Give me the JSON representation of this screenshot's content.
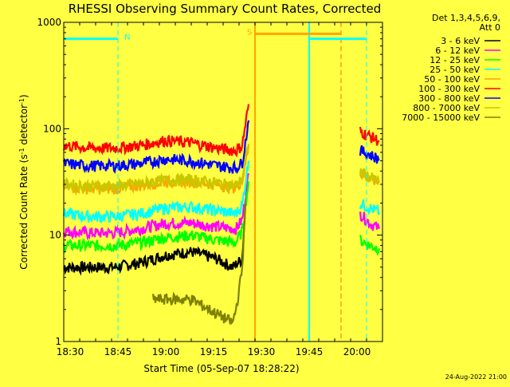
{
  "chart_data": {
    "type": "line",
    "title": "RHESSI Observing Summary Count Rates, Corrected",
    "xlabel": "Start Time (05-Sep-07 18:28:22)",
    "ylabel_parts": [
      "Corrected Count Rate (s",
      "-1",
      " detector",
      "-1",
      ")"
    ],
    "yscale": "log",
    "ylim": [
      1,
      1000
    ],
    "xlim": [
      "18:28",
      "20:08"
    ],
    "ytick_labels": [
      {
        "value": 1,
        "label": "1"
      },
      {
        "value": 10,
        "label": "10"
      },
      {
        "value": 100,
        "label": "100"
      },
      {
        "value": 1000,
        "label": "1000"
      }
    ],
    "xtick_labels": [
      {
        "value": "18:30",
        "label": "18:30"
      },
      {
        "value": "18:45",
        "label": "18:45"
      },
      {
        "value": "19:00",
        "label": "19:00"
      },
      {
        "value": "19:15",
        "label": "19:15"
      },
      {
        "value": "19:30",
        "label": "19:30"
      },
      {
        "value": "19:45",
        "label": "19:45"
      },
      {
        "value": "20:00",
        "label": "20:00"
      }
    ],
    "legend": {
      "placement": "right",
      "header": [
        "Det 1,3,4,5,6,9,",
        "Att 0"
      ]
    },
    "series": [
      {
        "name": "3 - 6 keV",
        "color": "#000000",
        "x": [
          "18:28",
          "18:36",
          "18:44",
          "18:52",
          "19:00",
          "19:08",
          "19:16",
          "19:21",
          "19:24",
          "19:25"
        ],
        "y": [
          5,
          5,
          5,
          5.5,
          6.5,
          7,
          6,
          5,
          6,
          20
        ]
      },
      {
        "name": "6 - 12 keV",
        "color": "#ff00ff",
        "x": [
          "18:28",
          "18:36",
          "18:44",
          "18:52",
          "19:00",
          "19:08",
          "19:16",
          "19:22",
          "19:24",
          "19:26",
          "20:01",
          "20:04",
          "20:07"
        ],
        "y": [
          11,
          10.5,
          10.5,
          11.5,
          13,
          13,
          12,
          11.5,
          14,
          38,
          16,
          13,
          11.5
        ]
      },
      {
        "name": "12 - 25 keV",
        "color": "#00ff00",
        "x": [
          "18:28",
          "18:36",
          "18:44",
          "18:52",
          "19:00",
          "19:08",
          "19:16",
          "19:22",
          "19:24",
          "19:26",
          "20:01",
          "20:04",
          "20:07"
        ],
        "y": [
          8,
          8,
          8,
          8.5,
          9.5,
          10,
          9,
          8.5,
          11,
          32,
          9,
          8,
          7.5
        ]
      },
      {
        "name": "25 - 50 keV",
        "color": "#00ffff",
        "x": [
          "18:28",
          "18:36",
          "18:44",
          "18:52",
          "19:00",
          "19:08",
          "19:16",
          "19:22",
          "19:24",
          "19:26",
          "20:01",
          "20:04",
          "20:07"
        ],
        "y": [
          16,
          15,
          15,
          16,
          18,
          18.5,
          17,
          16,
          19,
          50,
          20,
          18,
          16.5
        ]
      },
      {
        "name": "50 - 100 keV",
        "color": "#ffa500",
        "x": [
          "18:28",
          "18:36",
          "18:44",
          "18:52",
          "19:00",
          "19:08",
          "19:16",
          "19:22",
          "19:24",
          "19:26",
          "20:01",
          "20:04",
          "20:07"
        ],
        "y": [
          29,
          27.5,
          27.5,
          29.5,
          32,
          32,
          30,
          28,
          33,
          70,
          39,
          34,
          31
        ]
      },
      {
        "name": "100 - 300 keV",
        "color": "#ff0000",
        "x": [
          "18:28",
          "18:36",
          "18:44",
          "18:52",
          "19:00",
          "19:08",
          "19:16",
          "19:22",
          "19:24",
          "19:26",
          "20:01",
          "20:04",
          "20:07"
        ],
        "y": [
          70,
          66,
          66,
          70,
          78,
          74,
          66,
          62,
          70,
          170,
          95,
          85,
          77
        ]
      },
      {
        "name": "300 - 800 keV",
        "color": "#0000ff",
        "x": [
          "18:28",
          "18:36",
          "18:44",
          "18:52",
          "19:00",
          "19:08",
          "19:16",
          "19:22",
          "19:24",
          "19:26",
          "20:01",
          "20:04",
          "20:07"
        ],
        "y": [
          47,
          45,
          45,
          47,
          52,
          50,
          45,
          43,
          48,
          120,
          63,
          57,
          52
        ]
      },
      {
        "name": "800 - 7000 keV",
        "color": "#c8c800",
        "x": [
          "18:28",
          "18:36",
          "18:44",
          "18:52",
          "19:00",
          "19:08",
          "19:16",
          "19:22",
          "19:24",
          "19:26",
          "20:01",
          "20:04",
          "20:07"
        ],
        "y": [
          30,
          29,
          29,
          30.5,
          33,
          33,
          31,
          29,
          34,
          72,
          40,
          35,
          32
        ]
      },
      {
        "name": "7000 - 15000 keV",
        "color": "#808000",
        "x": [
          "18:56",
          "19:00",
          "19:04",
          "19:08",
          "19:21",
          "19:22",
          "19:23",
          "19:24",
          "19:25"
        ],
        "y": [
          2.5,
          2.5,
          2.5,
          2.5,
          1.5,
          2,
          3,
          5,
          20
        ]
      }
    ],
    "annotations": [
      {
        "type": "vline",
        "x": "18:45",
        "color": "#00ffff",
        "style": "dashed"
      },
      {
        "type": "vline",
        "x": "19:28",
        "color": "#ffa500",
        "style": "solid"
      },
      {
        "type": "vline",
        "x": "19:45",
        "color": "#00ffff",
        "style": "solid"
      },
      {
        "type": "vline",
        "x": "19:55",
        "color": "#ff6600",
        "style": "dashed"
      },
      {
        "type": "vline",
        "x": "20:03",
        "color": "#00ffff",
        "style": "dashed"
      },
      {
        "type": "bar",
        "label": "N",
        "label_color": "#00ffff",
        "color": "#00ffff",
        "x_start": "18:28",
        "x_end": "18:45",
        "y": 700
      },
      {
        "type": "bar",
        "label": "S",
        "label_color": "#ffa500",
        "color": "#ffa500",
        "x_start": "19:28",
        "x_end": "19:55",
        "y": 780
      },
      {
        "type": "bar",
        "label": "",
        "color": "#00ffff",
        "x_start": "19:45",
        "x_end": "20:03",
        "y": 700
      }
    ]
  },
  "footer_timestamp": "24-Aug-2022 21:00"
}
